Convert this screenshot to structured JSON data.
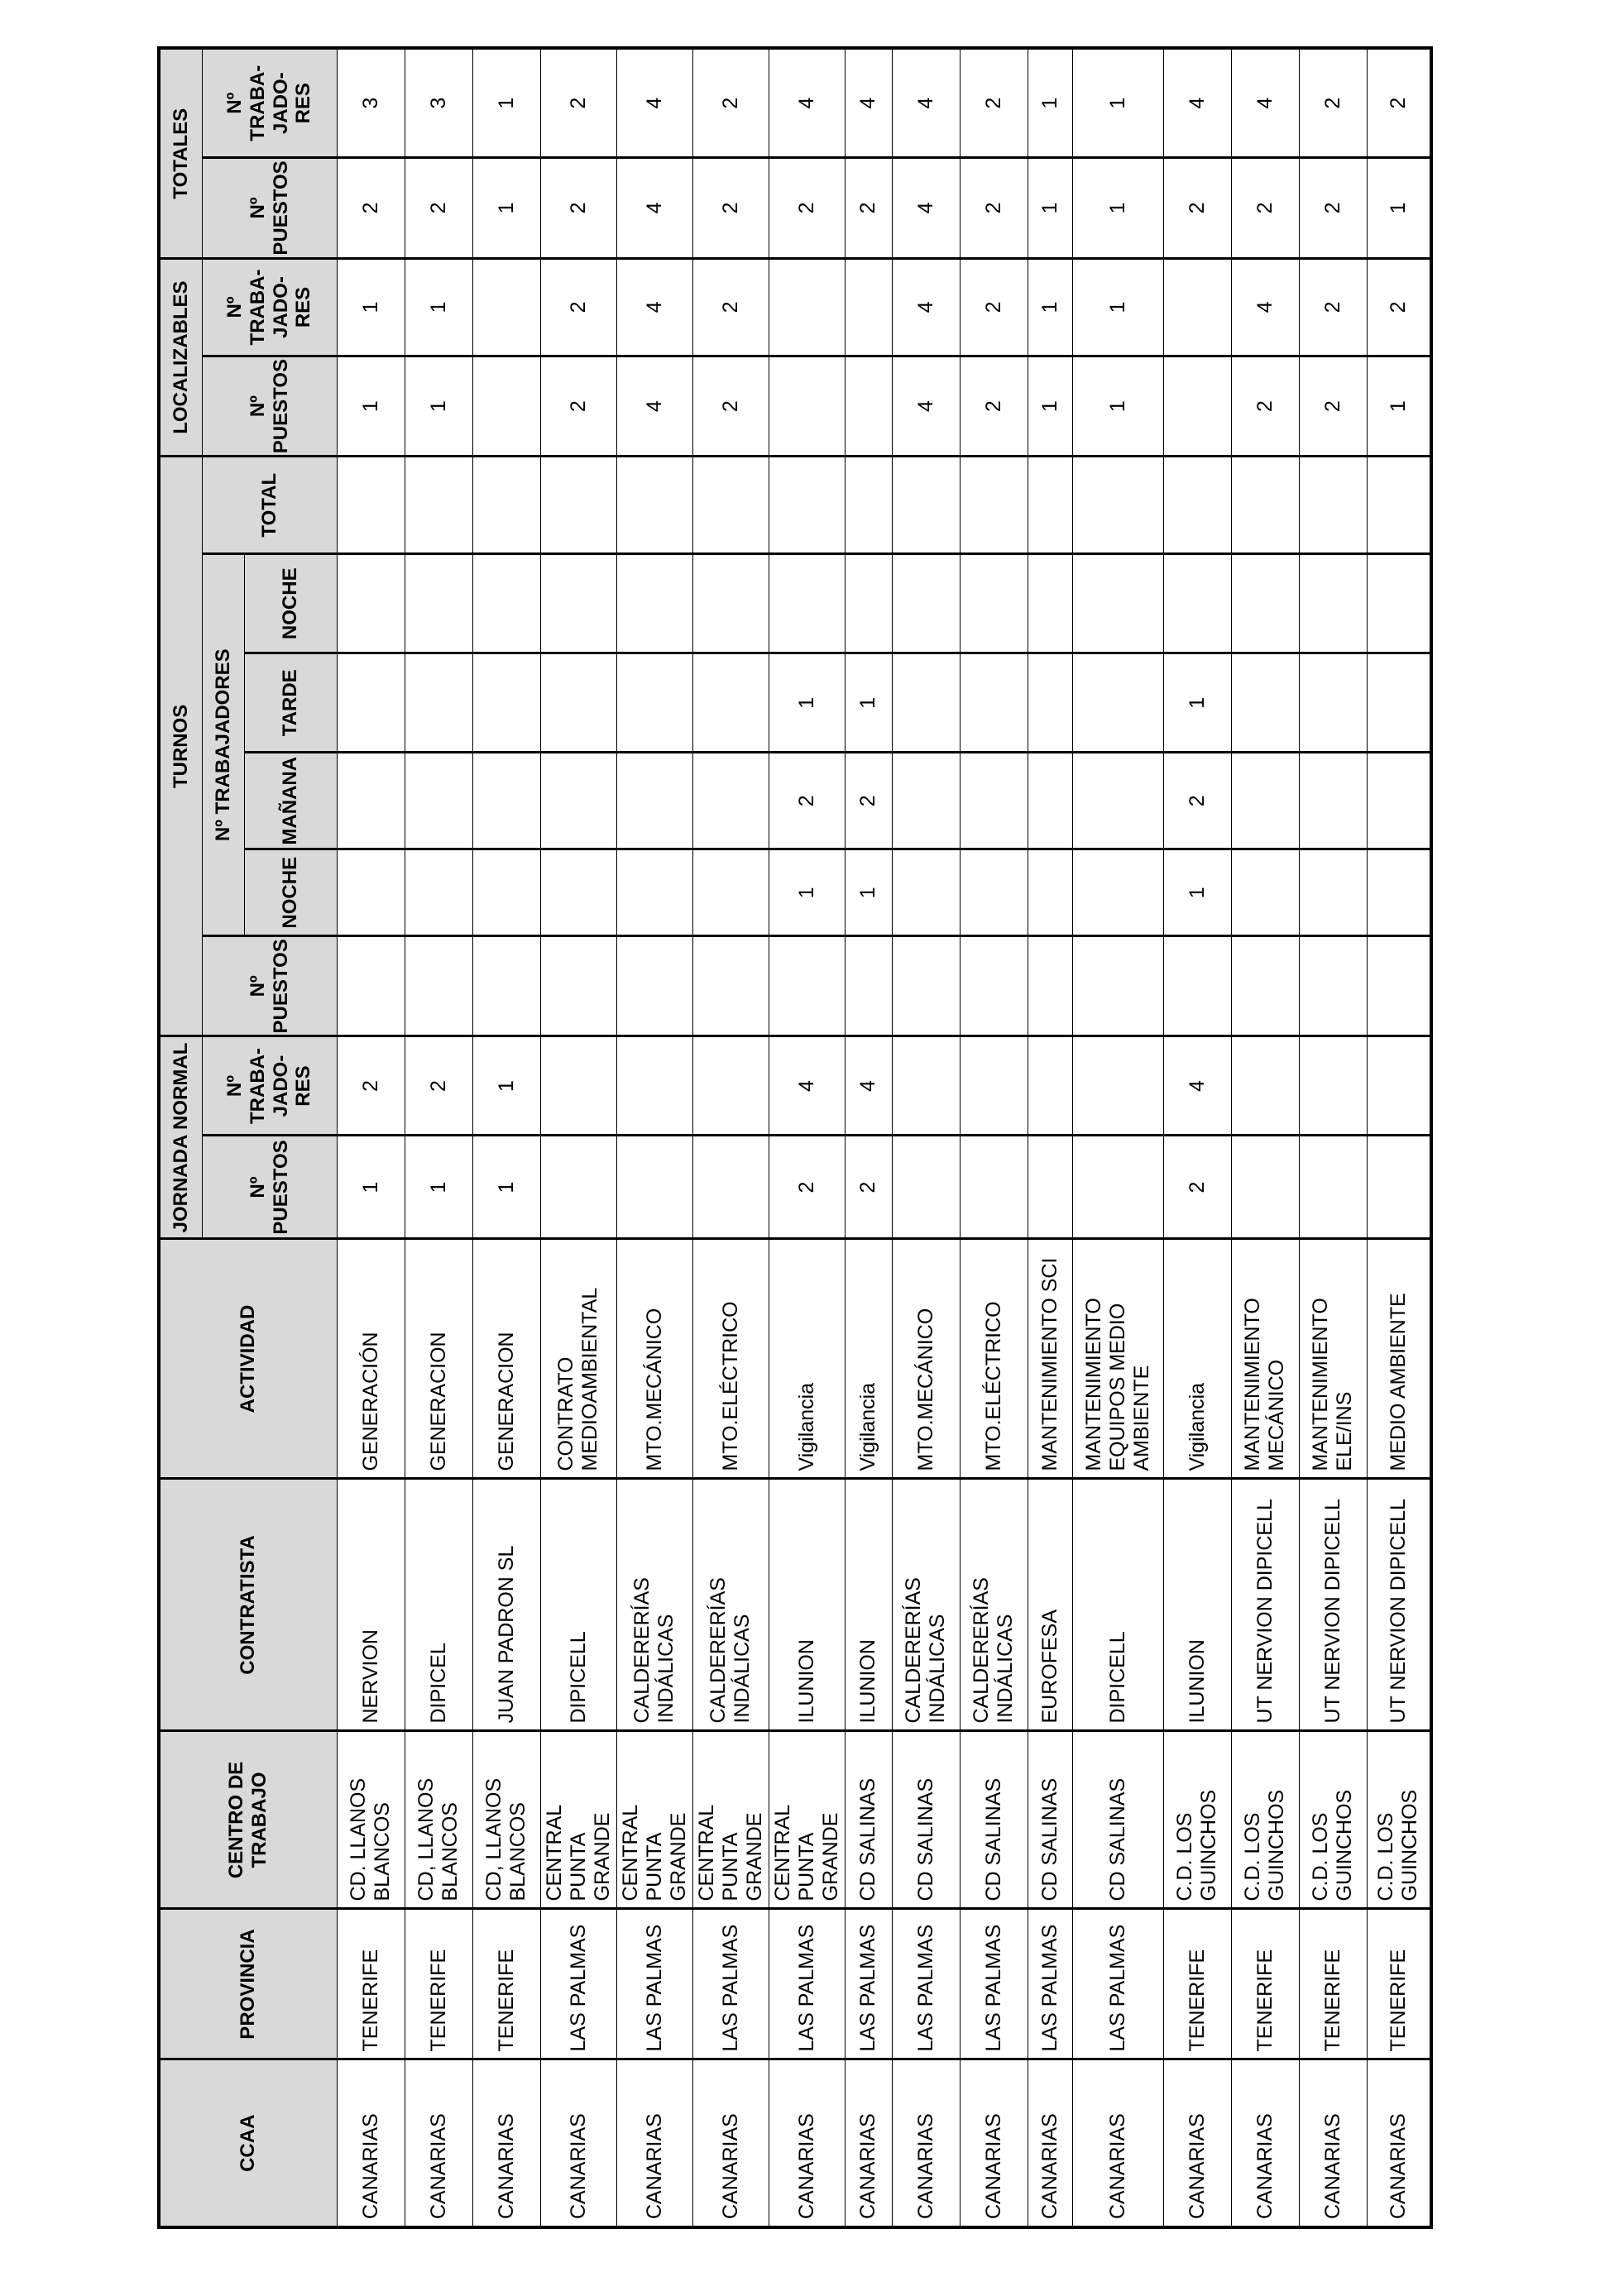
{
  "table": {
    "header": {
      "ccaa": "CCAA",
      "provincia": "PROVINCIA",
      "centro_de_trabajo": "CENTRO DE\nTRABAJO",
      "contratista": "CONTRATISTA",
      "actividad": "ACTIVIDAD",
      "jornada_normal": "JORNADA NORMAL",
      "turnos": "TURNOS",
      "localizables": "LOCALIZABLES",
      "totales": "TOTALES",
      "n_puestos": "Nº\nPUESTOS",
      "n_trabajadores_wrapped": "Nº\nTRABA-\nJADO-\nRES",
      "n_trabajadores": "Nº TRABAJADORES",
      "noche": "NOCHE",
      "manana": "MAÑANA",
      "tarde": "TARDE",
      "total": "TOTAL"
    },
    "column_keys": [
      "ccaa",
      "provincia",
      "centro_de_trabajo",
      "contratista",
      "actividad",
      "jornada_n_puestos",
      "jornada_n_trabajadores",
      "turnos_n_puestos",
      "turnos_noche_1",
      "turnos_manana",
      "turnos_tarde",
      "turnos_noche_2",
      "turnos_total",
      "localizables_n_puestos",
      "localizables_n_trabajadores",
      "totales_n_puestos",
      "totales_n_trabajadores"
    ],
    "rows": [
      [
        "CANARIAS",
        "TENERIFE",
        "CD. LLANOS\nBLANCOS",
        "NERVION",
        "GENERACIÓN",
        "1",
        "2",
        "",
        "",
        "",
        "",
        "",
        "",
        "1",
        "1",
        "2",
        "3"
      ],
      [
        "CANARIAS",
        "TENERIFE",
        "CD, LLANOS\nBLANCOS",
        "DIPICEL",
        "GENERACION",
        "1",
        "2",
        "",
        "",
        "",
        "",
        "",
        "",
        "1",
        "1",
        "2",
        "3"
      ],
      [
        "CANARIAS",
        "TENERIFE",
        "CD, LLANOS\nBLANCOS",
        "JUAN PADRON SL",
        "GENERACION",
        "1",
        "1",
        "",
        "",
        "",
        "",
        "",
        "",
        "",
        "",
        "1",
        "1"
      ],
      [
        "CANARIAS",
        "LAS PALMAS",
        "CENTRAL PUNTA\nGRANDE",
        "DIPICELL",
        "CONTRATO\nMEDIOAMBIENTAL",
        "",
        "",
        "",
        "",
        "",
        "",
        "",
        "",
        "2",
        "2",
        "2",
        "2"
      ],
      [
        "CANARIAS",
        "LAS PALMAS",
        "CENTRAL PUNTA\nGRANDE",
        "CALDERERÍAS\nINDÁLICAS",
        "MTO.MECÁNICO",
        "",
        "",
        "",
        "",
        "",
        "",
        "",
        "",
        "4",
        "4",
        "4",
        "4"
      ],
      [
        "CANARIAS",
        "LAS PALMAS",
        "CENTRAL PUNTA\nGRANDE",
        "CALDERERÍAS\nINDÁLICAS",
        "MTO.ELÉCTRICO",
        "",
        "",
        "",
        "",
        "",
        "",
        "",
        "",
        "2",
        "2",
        "2",
        "2"
      ],
      [
        "CANARIAS",
        "LAS PALMAS",
        "CENTRAL PUNTA\nGRANDE",
        "ILUNION",
        "Vigilancia",
        "2",
        "4",
        "",
        "1",
        "2",
        "1",
        "",
        "",
        "",
        "",
        "2",
        "4"
      ],
      [
        "CANARIAS",
        "LAS PALMAS",
        "CD SALINAS",
        "ILUNION",
        "Vigilancia",
        "2",
        "4",
        "",
        "1",
        "2",
        "1",
        "",
        "",
        "",
        "",
        "2",
        "4"
      ],
      [
        "CANARIAS",
        "LAS PALMAS",
        "CD SALINAS",
        "CALDERERÍAS\nINDÁLICAS",
        "MTO.MECÁNICO",
        "",
        "",
        "",
        "",
        "",
        "",
        "",
        "",
        "4",
        "4",
        "4",
        "4"
      ],
      [
        "CANARIAS",
        "LAS PALMAS",
        "CD SALINAS",
        "CALDERERÍAS\nINDÁLICAS",
        "MTO.ELÉCTRICO",
        "",
        "",
        "",
        "",
        "",
        "",
        "",
        "",
        "2",
        "2",
        "2",
        "2"
      ],
      [
        "CANARIAS",
        "LAS PALMAS",
        "CD SALINAS",
        "EUROFESA",
        "MANTENIMIENTO SCI",
        "",
        "",
        "",
        "",
        "",
        "",
        "",
        "",
        "1",
        "1",
        "1",
        "1"
      ],
      [
        "CANARIAS",
        "LAS PALMAS",
        "CD SALINAS",
        "DIPICELL",
        "MANTENIMIENTO\nEQUIPOS MEDIO\nAMBIENTE",
        "",
        "",
        "",
        "",
        "",
        "",
        "",
        "",
        "1",
        "1",
        "1",
        "1"
      ],
      [
        "CANARIAS",
        "TENERIFE",
        "C.D. LOS\nGUINCHOS",
        "ILUNION",
        "Vigilancia",
        "2",
        "4",
        "",
        "1",
        "2",
        "1",
        "",
        "",
        "",
        "",
        "2",
        "4"
      ],
      [
        "CANARIAS",
        "TENERIFE",
        "C.D. LOS\nGUINCHOS",
        "UT NERVION DIPICELL",
        "MANTENIMIENTO\nMECÁNICO",
        "",
        "",
        "",
        "",
        "",
        "",
        "",
        "",
        "2",
        "4",
        "2",
        "4"
      ],
      [
        "CANARIAS",
        "TENERIFE",
        "C.D. LOS\nGUINCHOS",
        "UT NERVION DIPICELL",
        "MANTENIMIENTO\nELE/INS",
        "",
        "",
        "",
        "",
        "",
        "",
        "",
        "",
        "2",
        "2",
        "2",
        "2"
      ],
      [
        "CANARIAS",
        "TENERIFE",
        "C.D. LOS\nGUINCHOS",
        "UT NERVION DIPICELL",
        "MEDIO AMBIENTE",
        "",
        "",
        "",
        "",
        "",
        "",
        "",
        "",
        "1",
        "2",
        "1",
        "2"
      ]
    ]
  }
}
